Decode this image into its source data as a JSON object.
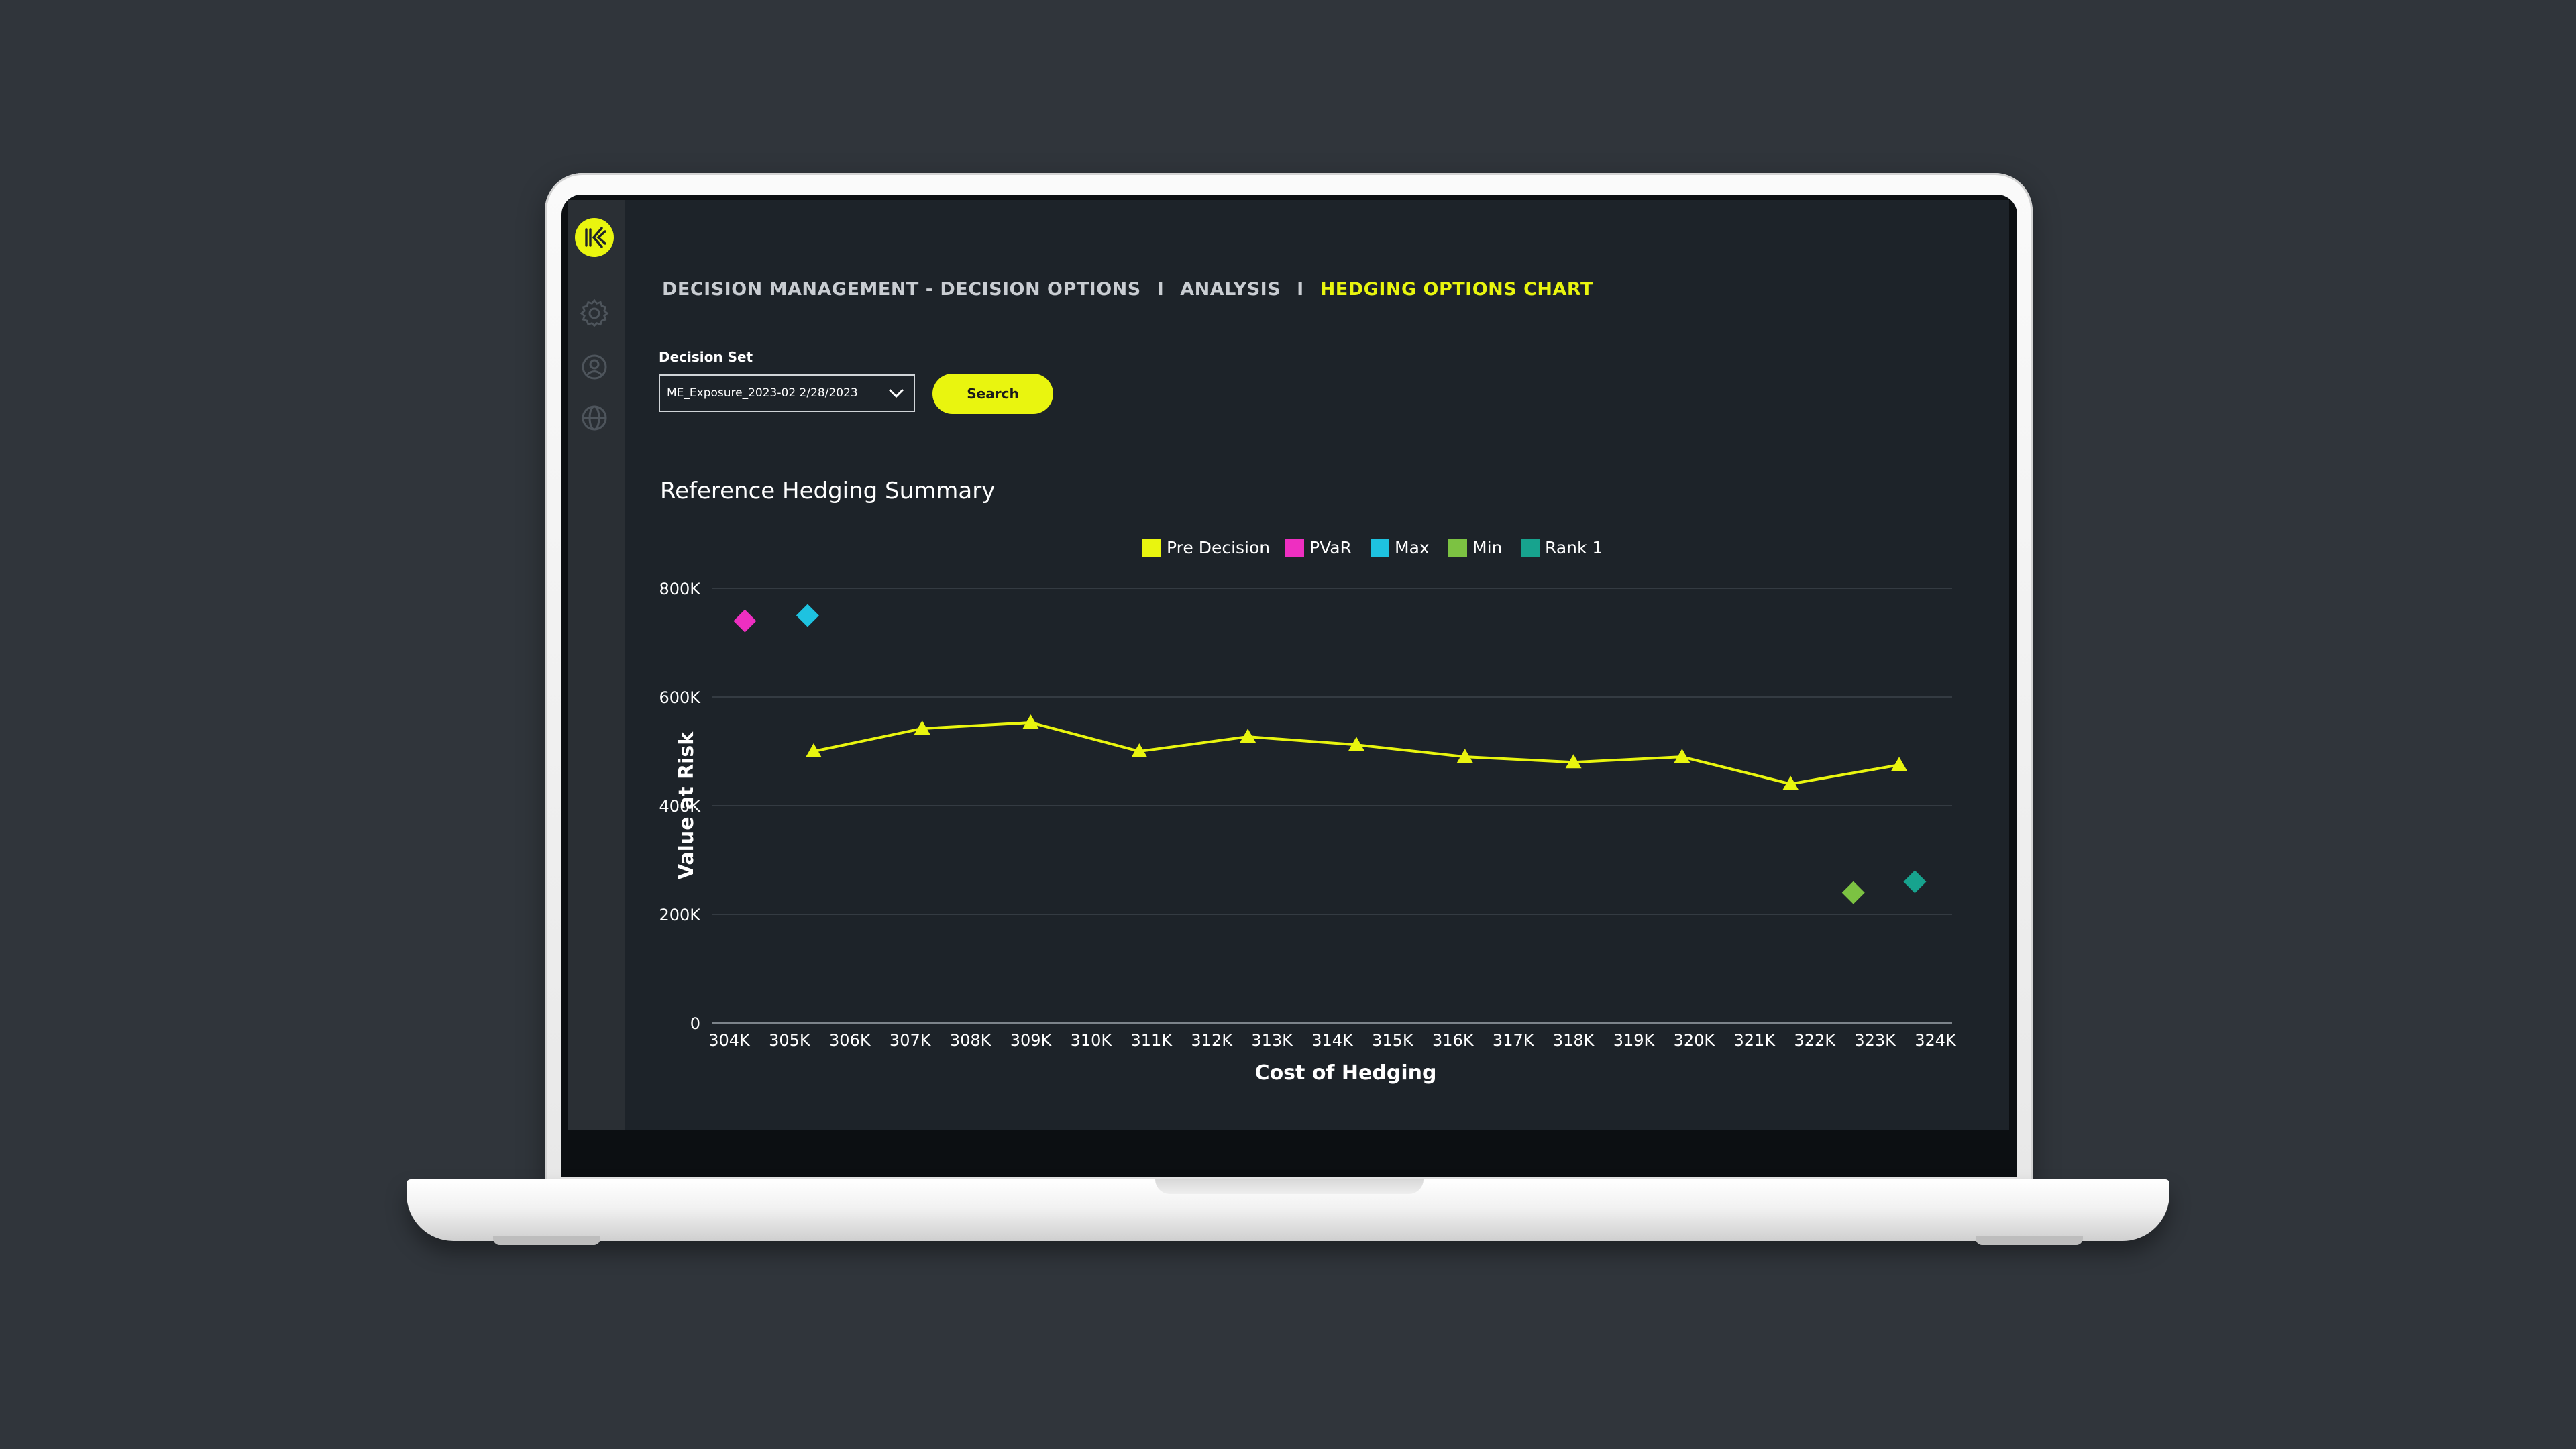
{
  "breadcrumb": {
    "item1": "DECISION MANAGEMENT - DECISION OPTIONS",
    "separator": "I",
    "item2": "ANALYSIS",
    "item3": "HEDGING OPTIONS CHART"
  },
  "decision_set": {
    "label": "Decision Set",
    "selected": "ME_Exposure_2023-02 2/28/2023"
  },
  "search_label": "Search",
  "sidebar_icons": [
    "logo-icon",
    "gear-icon",
    "user-icon",
    "globe-icon"
  ],
  "colors": {
    "accent": "#e9f50f",
    "background": "#1d2329",
    "sidebar": "#2a2f34"
  },
  "chart_data": {
    "type": "scatter",
    "title": "Reference Hedging Summary",
    "xlabel": "Cost of Hedging",
    "ylabel": "Value at Risk",
    "x_ticks": [
      "304K",
      "305K",
      "306K",
      "307K",
      "308K",
      "309K",
      "310K",
      "311K",
      "312K",
      "313K",
      "314K",
      "315K",
      "316K",
      "317K",
      "318K",
      "319K",
      "320K",
      "321K",
      "322K",
      "323K",
      "324K"
    ],
    "y_ticks": [
      "0",
      "200K",
      "400K",
      "600K",
      "800K"
    ],
    "xlim": [
      304000,
      324000
    ],
    "ylim": [
      0,
      800000
    ],
    "grid": true,
    "legend": "top-center",
    "series": [
      {
        "name": "Pre Decision",
        "color": "#e9f50f",
        "marker": "triangle",
        "line": true,
        "points": [
          [
            305400,
            500000
          ],
          [
            307200,
            542000
          ],
          [
            309000,
            553000
          ],
          [
            310800,
            500000
          ],
          [
            312600,
            527000
          ],
          [
            314400,
            512000
          ],
          [
            316200,
            490000
          ],
          [
            318000,
            480000
          ],
          [
            319800,
            490000
          ],
          [
            321600,
            440000
          ],
          [
            323400,
            475000
          ]
        ]
      },
      {
        "name": "PVaR",
        "color": "#ee2fc1",
        "marker": "diamond",
        "line": false,
        "points": [
          [
            304260,
            740000
          ]
        ]
      },
      {
        "name": "Max",
        "color": "#1ec2e0",
        "marker": "diamond",
        "line": false,
        "points": [
          [
            305300,
            750000
          ]
        ]
      },
      {
        "name": "Min",
        "color": "#7cc242",
        "marker": "diamond",
        "line": false,
        "points": [
          [
            322640,
            240000
          ]
        ]
      },
      {
        "name": "Rank 1",
        "color": "#17a38e",
        "marker": "diamond",
        "line": false,
        "points": [
          [
            323660,
            260000
          ]
        ]
      }
    ]
  }
}
